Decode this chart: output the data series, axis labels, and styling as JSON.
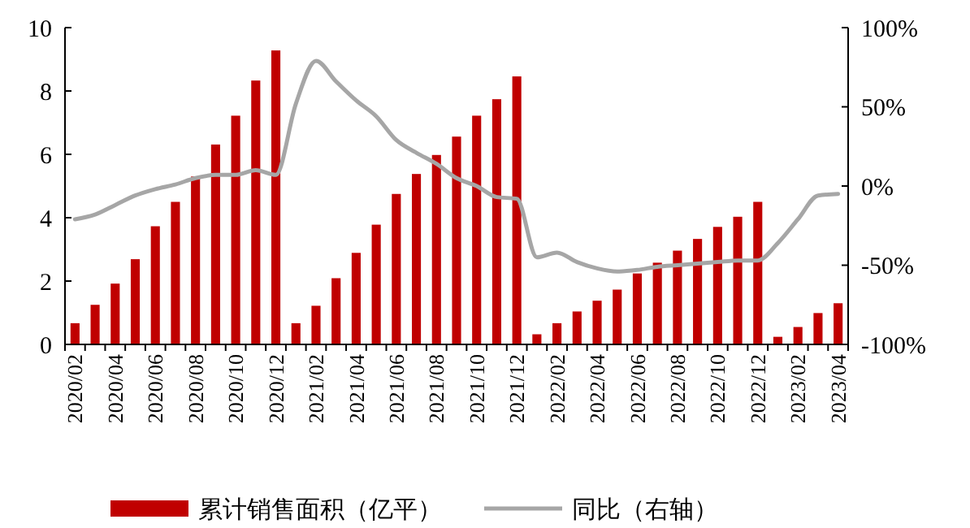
{
  "chart_data": {
    "type": "bar",
    "categories": [
      "2020/02",
      null,
      "2020/04",
      null,
      "2020/06",
      null,
      "2020/08",
      null,
      "2020/10",
      null,
      "2020/12",
      null,
      "2021/02",
      null,
      "2021/04",
      null,
      "2021/06",
      null,
      "2021/08",
      null,
      "2021/10",
      null,
      "2021/12",
      null,
      "2022/02",
      null,
      "2022/04",
      null,
      "2022/06",
      null,
      "2022/08",
      null,
      "2022/10",
      null,
      "2022/12",
      null,
      "2023/02",
      null,
      "2023/04"
    ],
    "series": [
      {
        "name": "累计销售面积（亿平）",
        "color": "#c00000",
        "values": [
          0.67,
          1.25,
          1.92,
          2.69,
          3.73,
          4.5,
          5.3,
          6.31,
          7.22,
          8.33,
          9.28,
          0.67,
          1.22,
          2.09,
          2.89,
          3.78,
          4.75,
          5.38,
          5.98,
          6.56,
          7.22,
          7.74,
          8.46,
          0.32,
          0.67,
          1.04,
          1.38,
          1.73,
          2.24,
          2.58,
          2.96,
          3.33,
          3.71,
          4.03,
          4.5,
          0.24,
          0.55,
          0.99,
          1.3
        ]
      },
      {
        "name": "同比（右轴）",
        "type": "line",
        "axis": "y2",
        "color": "#a6a6a6",
        "values": [
          -21,
          -18,
          -12,
          -6,
          -2,
          1,
          5,
          7,
          7,
          10,
          7,
          52,
          79,
          66,
          54,
          44,
          29,
          21,
          14,
          5,
          0,
          -7,
          -8,
          -45,
          -42,
          -48,
          -52,
          -54,
          -53,
          -51,
          -50,
          -49,
          -48,
          -47,
          -47,
          -36,
          -21,
          -6,
          -5
        ]
      }
    ],
    "ylim": [
      0,
      10
    ],
    "yticks": [
      0,
      2,
      4,
      6,
      8,
      10
    ],
    "y2lim": [
      -100,
      100
    ],
    "y2ticks": [
      {
        "value": -100,
        "label": "-100%"
      },
      {
        "value": -50,
        "label": "-50%"
      },
      {
        "value": 0,
        "label": "0%"
      },
      {
        "value": 50,
        "label": "50%"
      },
      {
        "value": 100,
        "label": "100%"
      }
    ],
    "grid": false,
    "legend": "bottom",
    "marker": "none",
    "line_style": "solid"
  }
}
